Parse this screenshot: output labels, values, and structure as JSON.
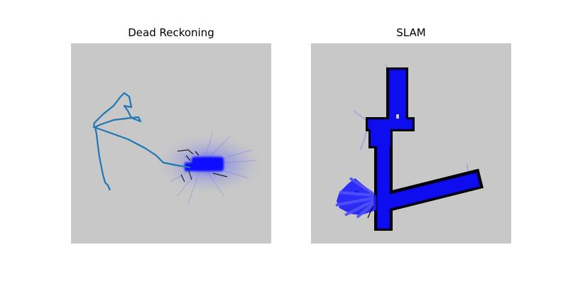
{
  "figure": {
    "panels": [
      {
        "title": "Dead Reckoning"
      },
      {
        "title": "SLAM"
      }
    ]
  },
  "colors": {
    "map_background": "#c8c8c8",
    "occupied": "#000000",
    "scan_hits": "#1010ff",
    "trajectory": "#1f77b4"
  }
}
